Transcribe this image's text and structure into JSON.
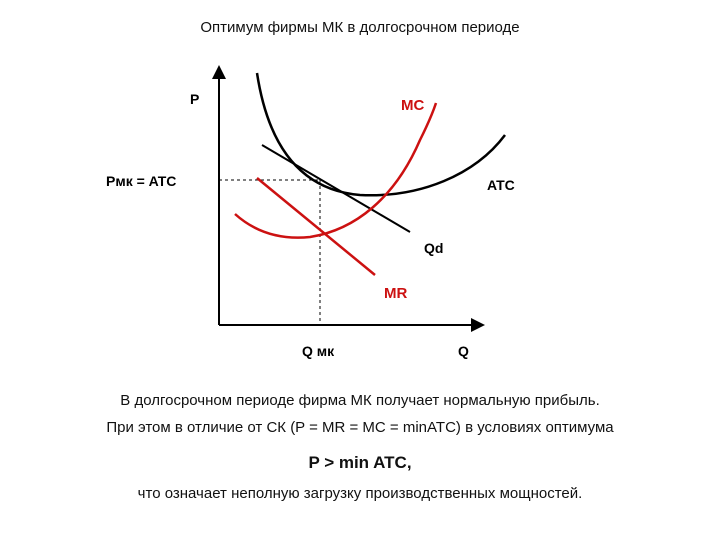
{
  "title": "Оптимум фирмы МК в долгосрочном периоде",
  "diagram": {
    "y_axis_label": "P",
    "x_axis_label": "Q",
    "price_label": "Pмк = ATC",
    "quantity_label": "Q мк",
    "curves": {
      "mc": "MC",
      "atc": "ATC",
      "demand": "Qd",
      "mr": "MR"
    },
    "colors": {
      "axes": "#000000",
      "atc": "#000000",
      "demand": "#000000",
      "mc": "#cc1111",
      "mr": "#cc1111",
      "mc_label": "#cc1111",
      "mr_label": "#cc1111"
    }
  },
  "caption": {
    "line1": "В долгосрочном периоде фирма МК получает нормальную прибыль.",
    "line2": "При этом в отличие от СК (P = MR = MC = minATC) в условиях оптимума",
    "line3": "P > min ATC,",
    "line4": "что означает неполную загрузку производственных мощностей."
  }
}
